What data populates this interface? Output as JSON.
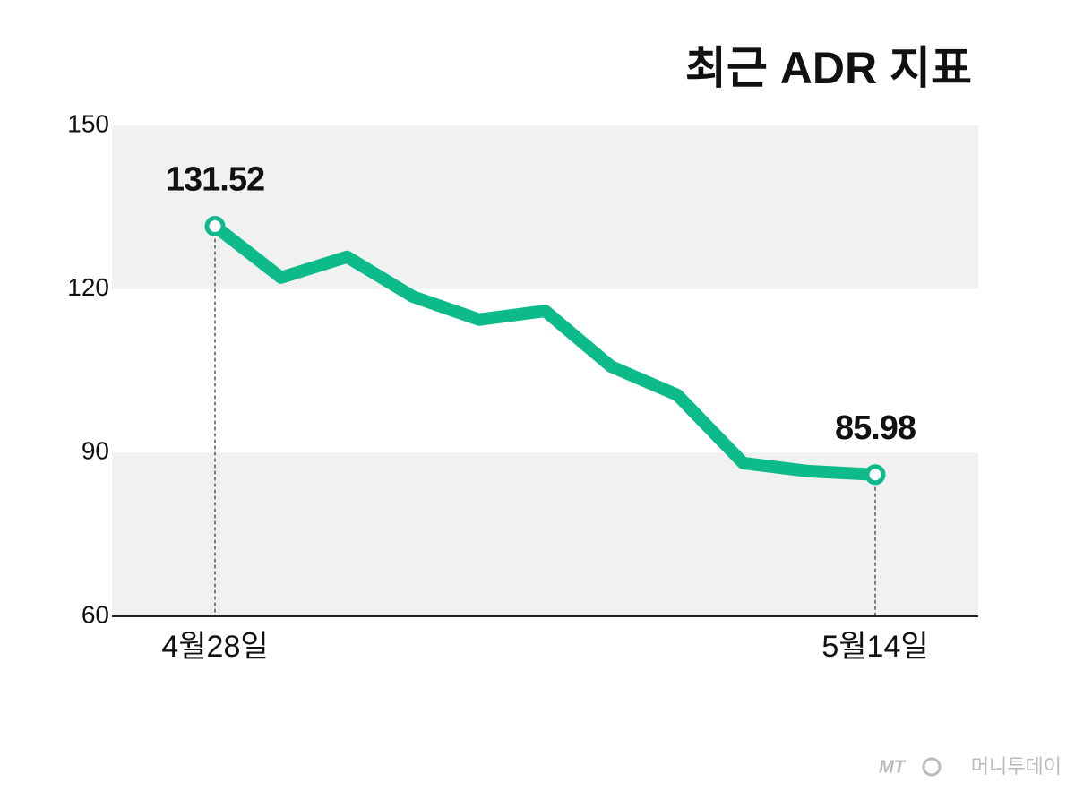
{
  "chart_data": {
    "type": "line",
    "title": "최근 ADR 지표",
    "categories": [
      "4월28일",
      null,
      null,
      null,
      null,
      null,
      null,
      null,
      null,
      null,
      "5월14일"
    ],
    "series": [
      {
        "color": "#0dbb8a",
        "values": [
          131.52,
          122.1,
          125.9,
          118.6,
          114.4,
          116.0,
          105.8,
          100.6,
          88.1,
          86.6,
          85.98
        ]
      }
    ],
    "ylim": [
      60,
      150
    ],
    "yticks": [
      60,
      90,
      120,
      150
    ],
    "band_color": "#f1f1f1",
    "credit": {
      "logo": "MT",
      "text": "머니투데이"
    }
  }
}
